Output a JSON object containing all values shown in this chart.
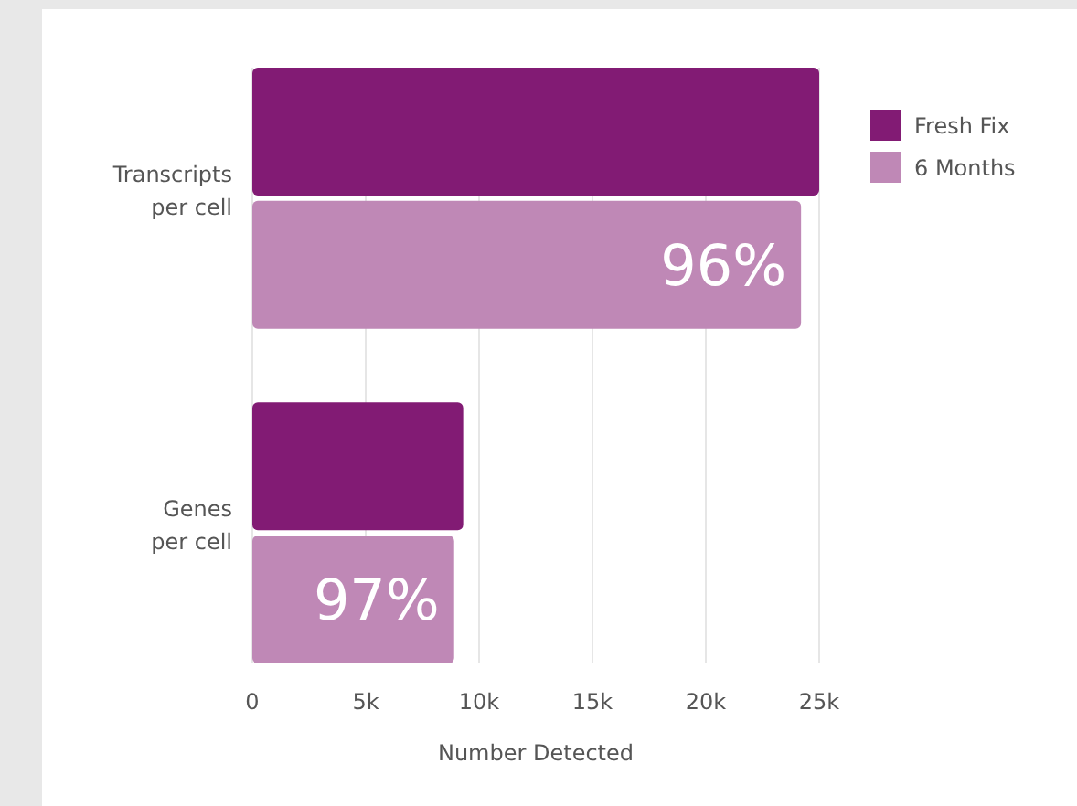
{
  "chart_data": {
    "type": "bar",
    "orientation": "horizontal",
    "xlabel": "Number Detected",
    "categories": [
      "Transcripts per cell",
      "Genes per cell"
    ],
    "series": [
      {
        "name": "Fresh Fix",
        "color": "#821b74",
        "values": [
          25000,
          9300
        ]
      },
      {
        "name": "6 Months",
        "color": "#bf88b6",
        "values": [
          24200,
          8900
        ]
      }
    ],
    "annotations": [
      {
        "text": "96%",
        "x": 24200,
        "y": "Transcripts per cell"
      },
      {
        "text": "97%",
        "x": 8900,
        "y": "Genes per cell"
      }
    ],
    "xlim": [
      0,
      25000
    ],
    "xticks": [
      0,
      {
        "value": 5000,
        "label": "5k"
      },
      {
        "value": 10000,
        "label": "10k"
      },
      {
        "value": 15000,
        "label": "15k"
      },
      {
        "value": 20000,
        "label": "20k"
      },
      {
        "value": 25000,
        "label": "25k"
      }
    ],
    "grid": "x",
    "legend": "top right"
  }
}
